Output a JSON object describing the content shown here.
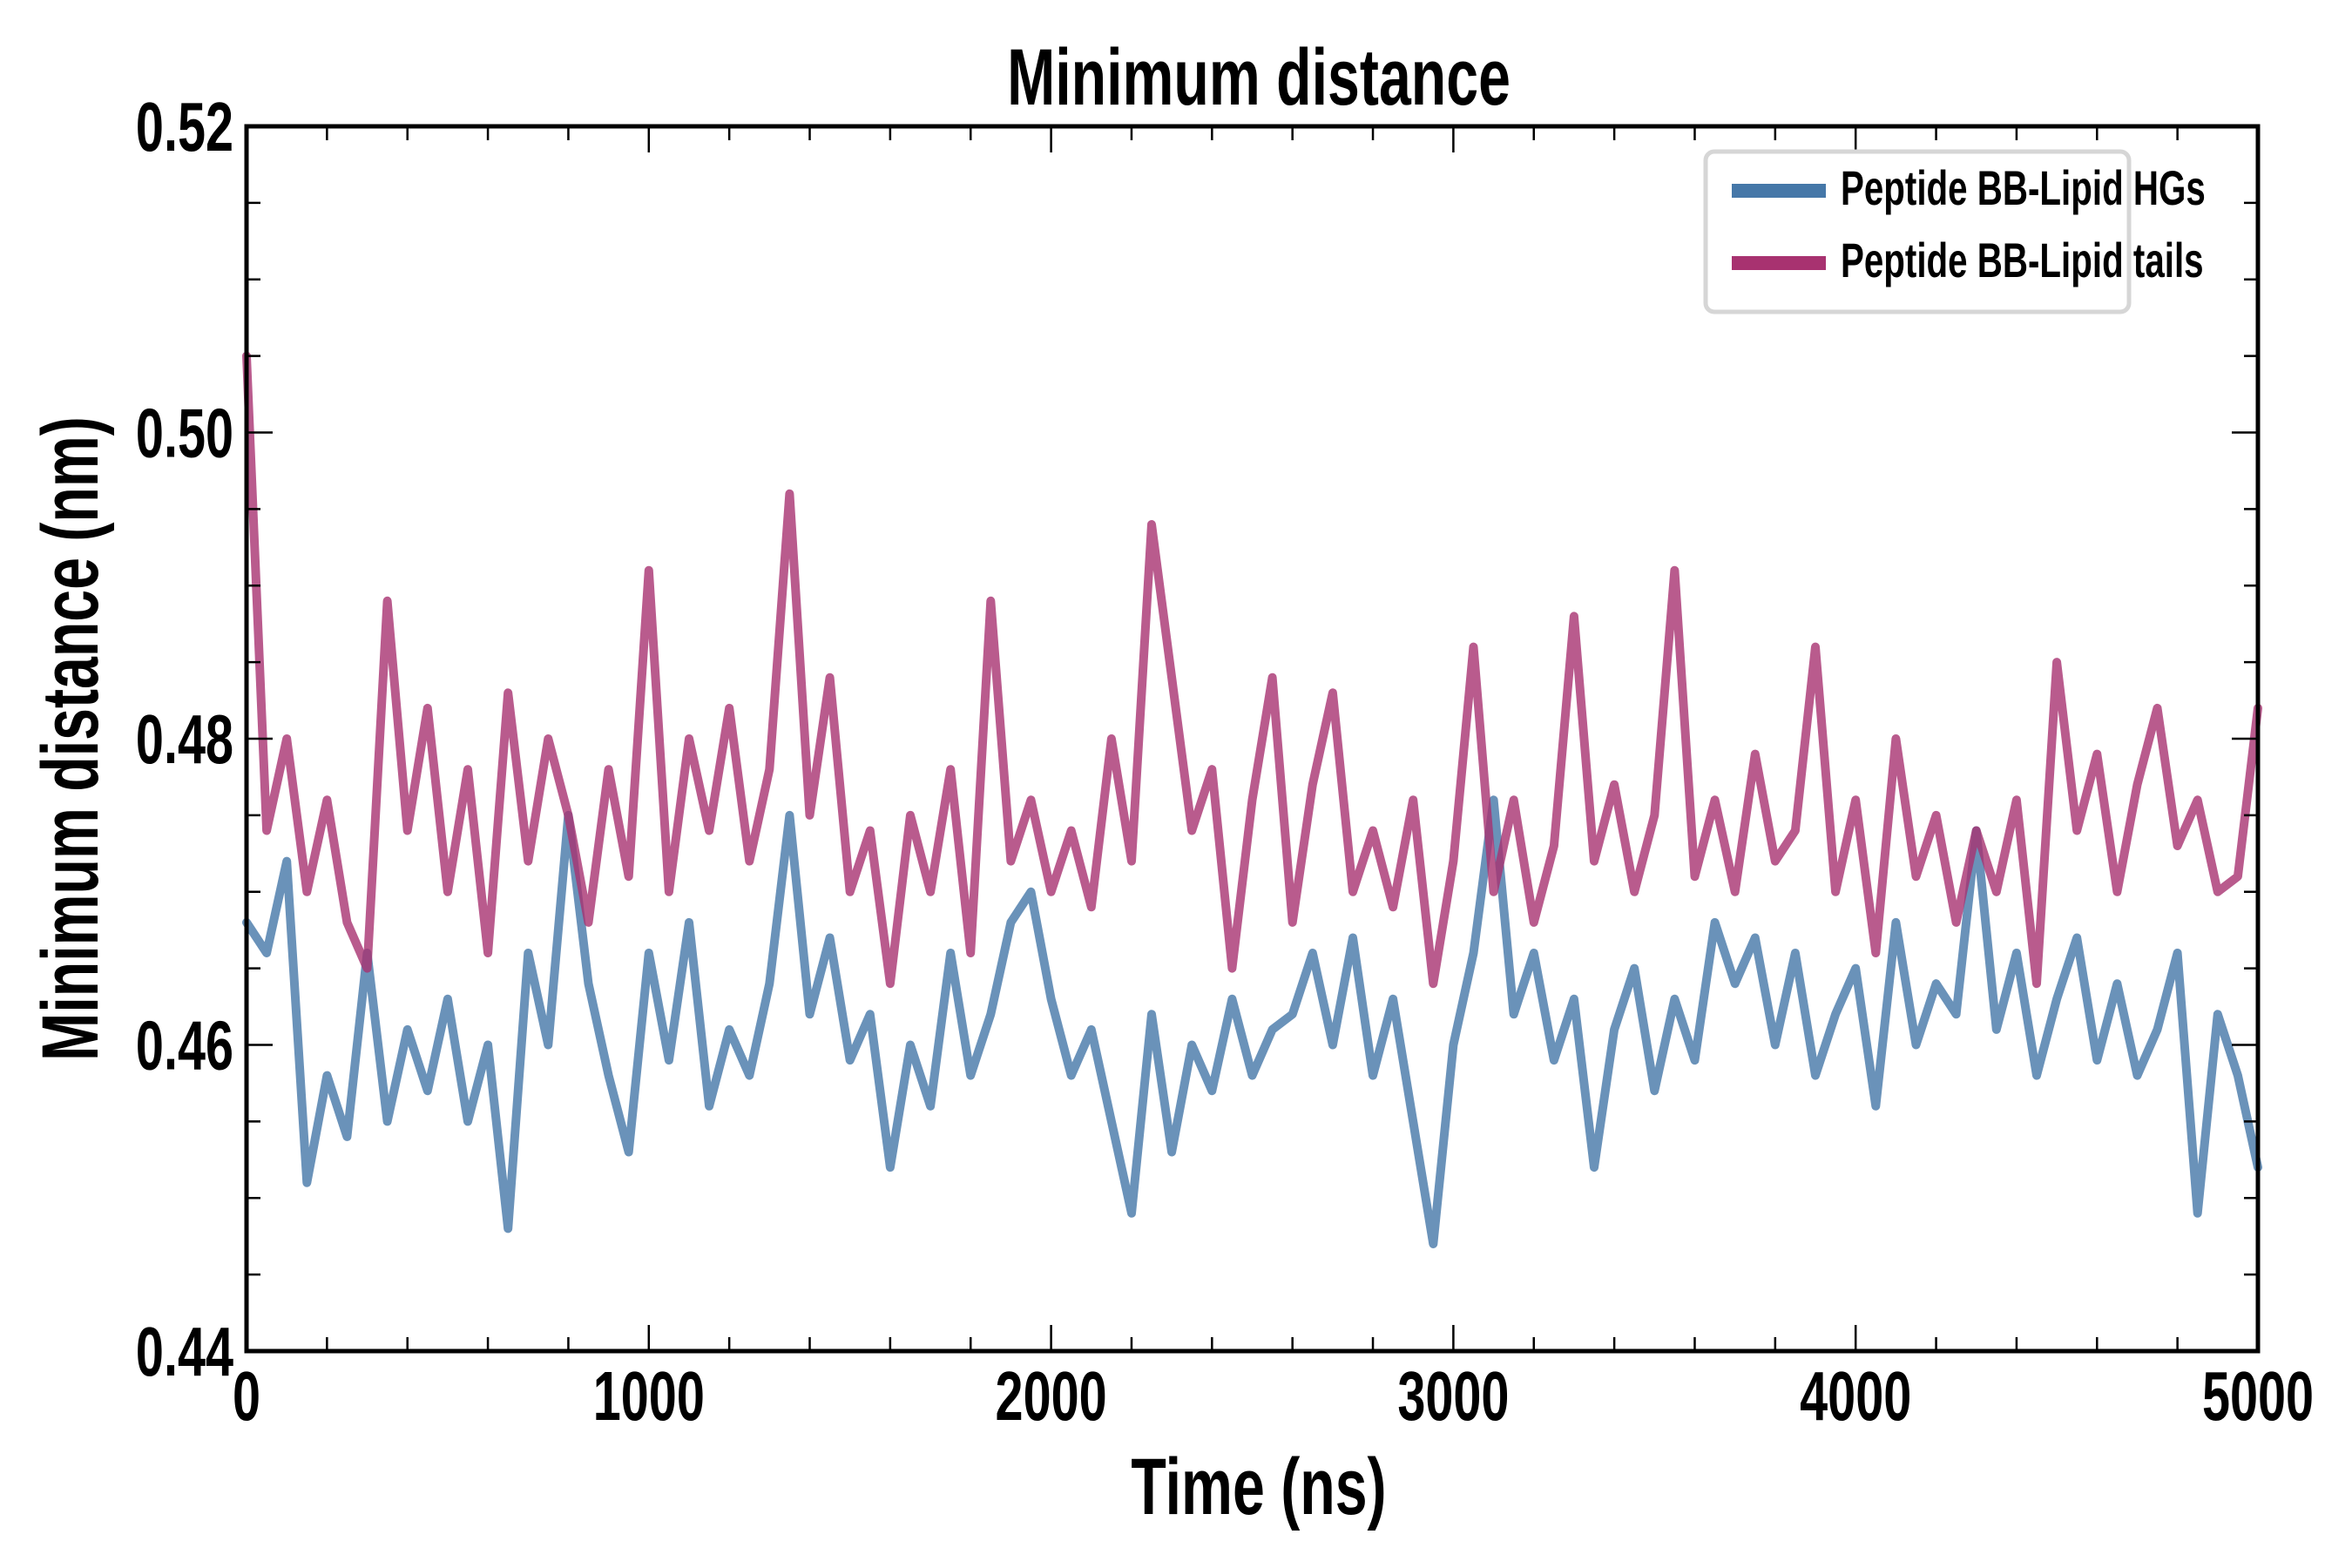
{
  "chart_data": {
    "type": "line",
    "title": "Minimum distance",
    "xlabel": "Time (ns)",
    "ylabel": "Minimum distance (nm)",
    "xlim": [
      0,
      5000
    ],
    "ylim": [
      0.44,
      0.52
    ],
    "xticks": [
      "0",
      "1000",
      "2000",
      "3000",
      "4000",
      "5000"
    ],
    "yticks": [
      "0.44",
      "0.46",
      "0.48",
      "0.50",
      "0.52"
    ],
    "grid": false,
    "legend_position": "top-right",
    "x_step": 50,
    "series": [
      {
        "name": "Peptide BB-Lipid HGs",
        "color": "#4577a8",
        "values": [
          0.468,
          0.466,
          0.472,
          0.451,
          0.458,
          0.454,
          0.466,
          0.455,
          0.461,
          0.457,
          0.463,
          0.455,
          0.46,
          0.448,
          0.466,
          0.46,
          0.475,
          0.464,
          0.458,
          0.453,
          0.466,
          0.459,
          0.468,
          0.456,
          0.461,
          0.458,
          0.464,
          0.475,
          0.462,
          0.467,
          0.459,
          0.462,
          0.452,
          0.46,
          0.456,
          0.466,
          0.458,
          0.462,
          0.468,
          0.47,
          0.463,
          0.458,
          0.461,
          0.455,
          0.449,
          0.462,
          0.453,
          0.46,
          0.457,
          0.463,
          0.458,
          0.461,
          0.462,
          0.466,
          0.46,
          0.467,
          0.458,
          0.463,
          0.455,
          0.447,
          0.46,
          0.466,
          0.476,
          0.462,
          0.466,
          0.459,
          0.463,
          0.452,
          0.461,
          0.465,
          0.457,
          0.463,
          0.459,
          0.468,
          0.464,
          0.467,
          0.46,
          0.466,
          0.458,
          0.462,
          0.465,
          0.456,
          0.468,
          0.46,
          0.464,
          0.462,
          0.474,
          0.461,
          0.466,
          0.458,
          0.463,
          0.467,
          0.459,
          0.464,
          0.458,
          0.461,
          0.466,
          0.449,
          0.462,
          0.458,
          0.452
        ]
      },
      {
        "name": "Peptide BB-Lipid tails",
        "color": "#a83270",
        "values": [
          0.505,
          0.474,
          0.48,
          0.47,
          0.476,
          0.468,
          0.465,
          0.489,
          0.474,
          0.482,
          0.47,
          0.478,
          0.466,
          0.483,
          0.472,
          0.48,
          0.475,
          0.468,
          0.478,
          0.471,
          0.491,
          0.47,
          0.48,
          0.474,
          0.482,
          0.472,
          0.478,
          0.496,
          0.475,
          0.484,
          0.47,
          0.474,
          0.464,
          0.475,
          0.47,
          0.478,
          0.466,
          0.489,
          0.472,
          0.476,
          0.47,
          0.474,
          0.469,
          0.48,
          0.472,
          0.494,
          0.484,
          0.474,
          0.478,
          0.465,
          0.476,
          0.484,
          0.468,
          0.477,
          0.483,
          0.47,
          0.474,
          0.469,
          0.476,
          0.464,
          0.472,
          0.486,
          0.47,
          0.476,
          0.468,
          0.473,
          0.488,
          0.472,
          0.477,
          0.47,
          0.475,
          0.491,
          0.471,
          0.476,
          0.47,
          0.479,
          0.472,
          0.474,
          0.486,
          0.47,
          0.476,
          0.466,
          0.48,
          0.471,
          0.475,
          0.468,
          0.474,
          0.47,
          0.476,
          0.464,
          0.485,
          0.474,
          0.479,
          0.47,
          0.477,
          0.482,
          0.473,
          0.476,
          0.47,
          0.471,
          0.482
        ]
      }
    ]
  }
}
